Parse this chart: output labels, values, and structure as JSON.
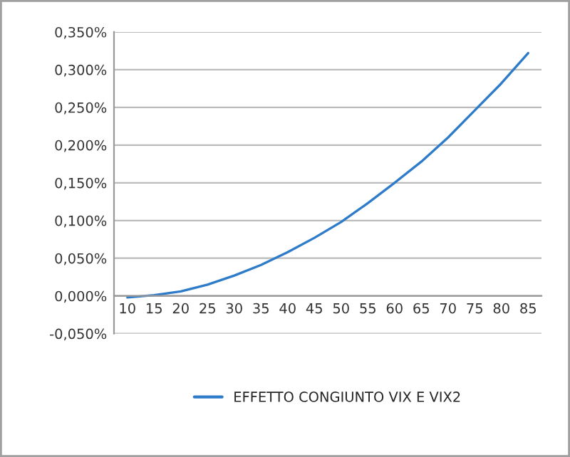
{
  "chart_data": {
    "type": "line",
    "categories": [
      "10",
      "15",
      "20",
      "25",
      "30",
      "35",
      "40",
      "45",
      "50",
      "55",
      "60",
      "65",
      "70",
      "75",
      "80",
      "85"
    ],
    "series": [
      {
        "name": "EFFETTO CONGIUNTO VIX E VIX2",
        "color": "#2e7cc9",
        "values": [
          -0.002,
          0.001,
          0.006,
          0.015,
          0.027,
          0.041,
          0.058,
          0.077,
          0.098,
          0.123,
          0.15,
          0.178,
          0.21,
          0.246,
          0.282,
          0.322
        ]
      }
    ],
    "ylim": [
      -0.05,
      0.35
    ],
    "yticks": [
      {
        "value": -0.05,
        "label": "-0,050%"
      },
      {
        "value": 0,
        "label": "0,000%"
      },
      {
        "value": 0.05,
        "label": "0,050%"
      },
      {
        "value": 0.1,
        "label": "0,100%"
      },
      {
        "value": 0.15,
        "label": "0,150%"
      },
      {
        "value": 0.2,
        "label": "0,200%"
      },
      {
        "value": 0.25,
        "label": "0,250%"
      },
      {
        "value": 0.3,
        "label": "0,300%"
      },
      {
        "value": 0.35,
        "label": "0,350%"
      }
    ],
    "grid": "y",
    "legend": "bottom",
    "marker": "none",
    "line_style": "solid"
  }
}
